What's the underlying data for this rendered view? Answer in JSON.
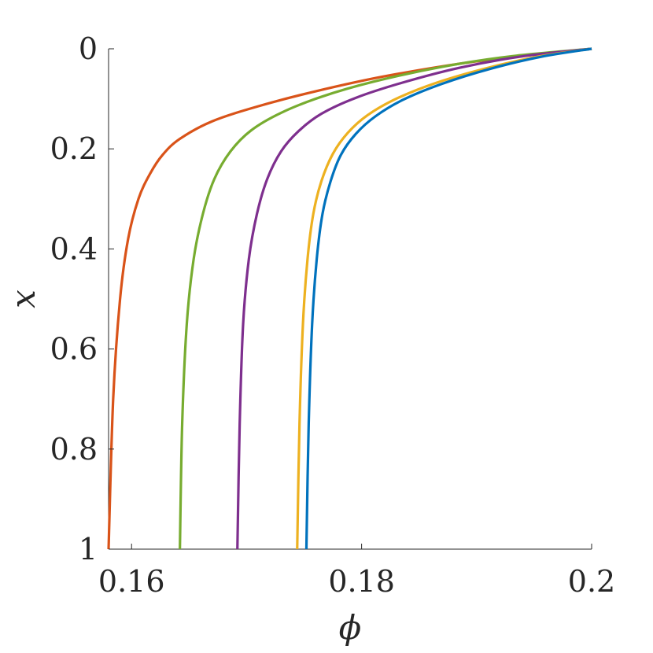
{
  "chart_data": {
    "type": "line",
    "xlabel": "ϕ",
    "ylabel": "x",
    "xlim": [
      0.158,
      0.2
    ],
    "ylim": [
      0,
      1
    ],
    "y_reversed": true,
    "grid": false,
    "x_ticks": [
      0.16,
      0.18,
      0.2
    ],
    "x_tick_labels": [
      "0.16",
      "0.18",
      "0.2"
    ],
    "y_ticks": [
      0,
      0.2,
      0.4,
      0.6,
      0.8,
      1
    ],
    "y_tick_labels": [
      "0",
      "0.2",
      "0.4",
      "0.6",
      "0.8",
      "1"
    ],
    "series": [
      {
        "color": "#D95319",
        "x": [
          0.158,
          0.1584,
          0.159,
          0.1597,
          0.1606,
          0.1616,
          0.1627,
          0.1642,
          0.167,
          0.171,
          0.176,
          0.182,
          0.19,
          0.2
        ],
        "y": [
          1.0,
          0.7,
          0.5,
          0.38,
          0.3,
          0.25,
          0.212,
          0.18,
          0.145,
          0.115,
          0.085,
          0.055,
          0.025,
          0.0
        ]
      },
      {
        "color": "#77AC30",
        "x": [
          0.1642,
          0.1644,
          0.1648,
          0.1654,
          0.1662,
          0.1672,
          0.1686,
          0.1704,
          0.173,
          0.1765,
          0.181,
          0.187,
          0.193,
          0.2
        ],
        "y": [
          1.0,
          0.75,
          0.55,
          0.42,
          0.33,
          0.26,
          0.205,
          0.163,
          0.128,
          0.096,
          0.066,
          0.036,
          0.015,
          0.0
        ]
      },
      {
        "color": "#7E2F8E",
        "x": [
          0.1692,
          0.1694,
          0.1697,
          0.1702,
          0.1709,
          0.1718,
          0.173,
          0.1745,
          0.1765,
          0.1795,
          0.1835,
          0.1885,
          0.194,
          0.2
        ],
        "y": [
          1.0,
          0.75,
          0.55,
          0.42,
          0.33,
          0.26,
          0.205,
          0.165,
          0.13,
          0.098,
          0.068,
          0.038,
          0.015,
          0.0
        ]
      },
      {
        "color": "#EDB120",
        "x": [
          0.1744,
          0.1746,
          0.1749,
          0.1753,
          0.1758,
          0.1765,
          0.1775,
          0.1788,
          0.1805,
          0.183,
          0.1865,
          0.191,
          0.1955,
          0.2
        ],
        "y": [
          1.0,
          0.75,
          0.55,
          0.42,
          0.33,
          0.265,
          0.21,
          0.168,
          0.133,
          0.1,
          0.068,
          0.038,
          0.015,
          0.0
        ]
      },
      {
        "color": "#0072BD",
        "x": [
          0.1752,
          0.1754,
          0.1757,
          0.1761,
          0.1766,
          0.1773,
          0.1782,
          0.1795,
          0.1812,
          0.1836,
          0.187,
          0.1912,
          0.1956,
          0.2
        ],
        "y": [
          1.0,
          0.75,
          0.55,
          0.42,
          0.33,
          0.265,
          0.212,
          0.17,
          0.135,
          0.102,
          0.07,
          0.04,
          0.016,
          0.0
        ]
      }
    ]
  }
}
